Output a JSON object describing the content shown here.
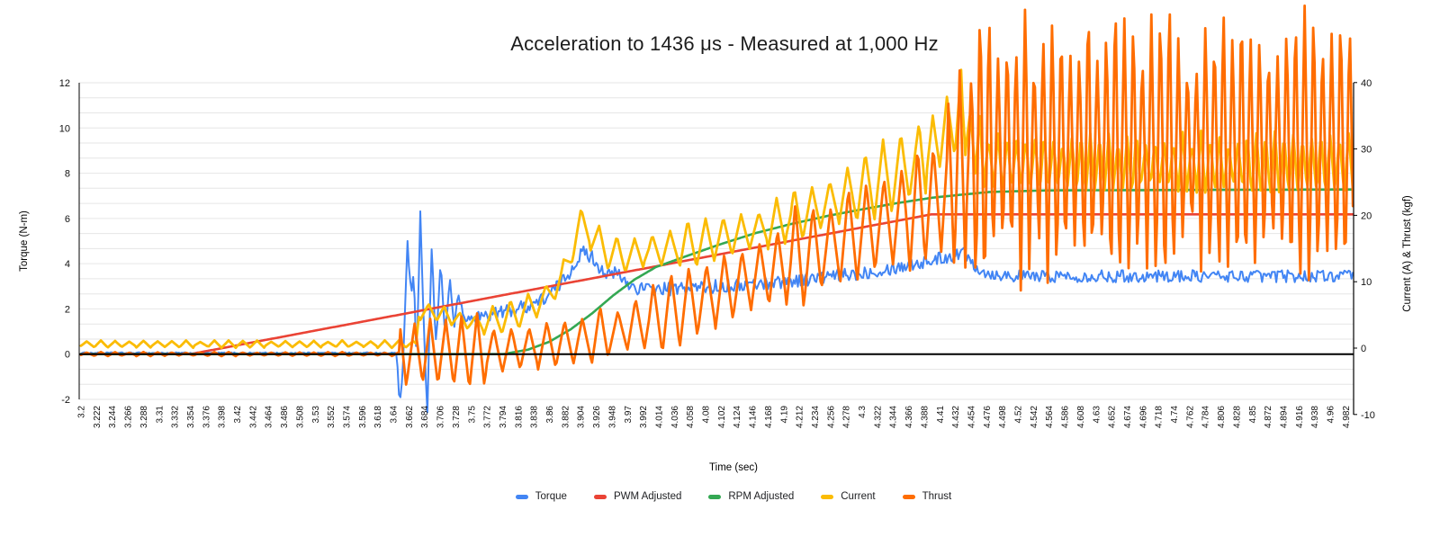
{
  "chart_data": {
    "type": "line",
    "title": "Acceleration to 1436 μs - Measured at 1,000 Hz",
    "x_axis": {
      "label": "Time (sec)",
      "tick_labels": [
        "3.2",
        "3.222",
        "3.244",
        "3.266",
        "3.288",
        "3.31",
        "3.332",
        "3.354",
        "3.376",
        "3.398",
        "3.42",
        "3.442",
        "3.464",
        "3.486",
        "3.508",
        "3.53",
        "3.552",
        "3.574",
        "3.596",
        "3.618",
        "3.64",
        "3.662",
        "3.684",
        "3.706",
        "3.728",
        "3.75",
        "3.772",
        "3.794",
        "3.816",
        "3.838",
        "3.86",
        "3.882",
        "3.904",
        "3.926",
        "3.948",
        "3.97",
        "3.992",
        "4.014",
        "4.036",
        "4.058",
        "4.08",
        "4.102",
        "4.124",
        "4.146",
        "4.168",
        "4.19",
        "4.212",
        "4.234",
        "4.256",
        "4.278",
        "4.3",
        "4.322",
        "4.344",
        "4.366",
        "4.388",
        "4.41",
        "4.432",
        "4.454",
        "4.476",
        "4.498",
        "4.52",
        "4.542",
        "4.564",
        "4.586",
        "4.608",
        "4.63",
        "4.652",
        "4.674",
        "4.696",
        "4.718",
        "4.74",
        "4.762",
        "4.784",
        "4.806",
        "4.828",
        "4.85",
        "4.872",
        "4.894",
        "4.916",
        "4.938",
        "4.96",
        "4.982"
      ],
      "tick_start": 3.2,
      "tick_step": 0.022,
      "x_range": [
        3.2,
        4.993
      ]
    },
    "y_axis_left": {
      "label": "Torque (N-m)",
      "ticks": [
        -2,
        0,
        2,
        4,
        6,
        8,
        10,
        12
      ],
      "range": [
        -2,
        12
      ],
      "minor_grid_step": 0.6667
    },
    "y_axis_right": {
      "label": "Current (A) & Thrust (kgf)",
      "ticks": [
        -10,
        0,
        10,
        20,
        30,
        40
      ],
      "range": [
        -10,
        40
      ]
    },
    "grid": true,
    "legend_position": "bottom",
    "baseline_value": 0,
    "colors": {
      "torque": "#4285F4",
      "pwm_adjusted": "#EA4335",
      "rpm_adjusted": "#34A853",
      "current": "#FBBC04",
      "thrust": "#FF6D01",
      "gridline": "#e6e6e6",
      "axis": "#000000"
    },
    "series": [
      {
        "name": "Torque",
        "color": "#4285F4",
        "axis": "left",
        "stroke_width": 2,
        "keyframes": [
          [
            3.2,
            0.05
          ],
          [
            3.645,
            0.05
          ],
          [
            3.649,
            -2.6
          ],
          [
            3.654,
            -0.2
          ],
          [
            3.66,
            5.0
          ],
          [
            3.665,
            2.6
          ],
          [
            3.669,
            3.4
          ],
          [
            3.673,
            -0.4
          ],
          [
            3.678,
            6.2
          ],
          [
            3.683,
            1.0
          ],
          [
            3.688,
            -2.5
          ],
          [
            3.694,
            4.65
          ],
          [
            3.7,
            0.45
          ],
          [
            3.707,
            4.1
          ],
          [
            3.713,
            0.9
          ],
          [
            3.72,
            3.3
          ],
          [
            3.726,
            1.2
          ],
          [
            3.732,
            2.7
          ],
          [
            3.739,
            1.5
          ],
          [
            3.75,
            1.6
          ],
          [
            3.77,
            1.72
          ],
          [
            3.8,
            1.9
          ],
          [
            3.83,
            2.15
          ],
          [
            3.855,
            2.5
          ],
          [
            3.875,
            3.1
          ],
          [
            3.89,
            3.7
          ],
          [
            3.9,
            4.25
          ],
          [
            3.907,
            4.5
          ],
          [
            3.92,
            4.3
          ],
          [
            3.932,
            3.8
          ],
          [
            3.945,
            3.45
          ],
          [
            3.955,
            3.62
          ],
          [
            3.965,
            3.2
          ],
          [
            3.98,
            2.95
          ],
          [
            4.0,
            2.85
          ],
          [
            4.05,
            2.9
          ],
          [
            4.1,
            3.0
          ],
          [
            4.15,
            3.1
          ],
          [
            4.2,
            3.25
          ],
          [
            4.25,
            3.4
          ],
          [
            4.3,
            3.6
          ],
          [
            4.35,
            3.85
          ],
          [
            4.4,
            4.15
          ],
          [
            4.425,
            4.35
          ],
          [
            4.445,
            4.5
          ],
          [
            4.457,
            4.05
          ],
          [
            4.468,
            3.7
          ],
          [
            4.48,
            3.55
          ],
          [
            4.52,
            3.45
          ],
          [
            4.993,
            3.45
          ]
        ],
        "noise": {
          "type": "random",
          "segments": [
            [
              3.2,
              0.03,
              0
            ],
            [
              3.645,
              0.22,
              0
            ],
            [
              3.742,
              0.3,
              0
            ],
            [
              4.47,
              0.27,
              0
            ]
          ]
        }
      },
      {
        "name": "PWM Adjusted",
        "color": "#EA4335",
        "axis": "left",
        "stroke_width": 2.6,
        "keyframes": [
          [
            3.2,
            0
          ],
          [
            3.354,
            0
          ],
          [
            4.398,
            6.18
          ],
          [
            4.993,
            6.18
          ]
        ],
        "noise": null
      },
      {
        "name": "RPM Adjusted",
        "color": "#34A853",
        "axis": "left",
        "stroke_width": 2.6,
        "keyframes": [
          [
            3.2,
            0
          ],
          [
            3.795,
            0
          ],
          [
            3.83,
            0.2
          ],
          [
            3.86,
            0.55
          ],
          [
            3.89,
            1.1
          ],
          [
            3.92,
            1.8
          ],
          [
            3.95,
            2.6
          ],
          [
            3.98,
            3.3
          ],
          [
            4.01,
            3.85
          ],
          [
            4.05,
            4.3
          ],
          [
            4.1,
            4.85
          ],
          [
            4.15,
            5.35
          ],
          [
            4.2,
            5.75
          ],
          [
            4.25,
            6.1
          ],
          [
            4.3,
            6.4
          ],
          [
            4.35,
            6.68
          ],
          [
            4.4,
            6.92
          ],
          [
            4.44,
            7.05
          ],
          [
            4.48,
            7.17
          ],
          [
            4.56,
            7.24
          ],
          [
            4.993,
            7.28
          ]
        ],
        "noise": null
      },
      {
        "name": "Current",
        "color": "#FBBC04",
        "axis": "right",
        "stroke_width": 2.8,
        "keyframes": [
          [
            3.2,
            0.6
          ],
          [
            3.672,
            0.6
          ],
          [
            3.676,
            5.4
          ],
          [
            3.69,
            5.56
          ],
          [
            3.71,
            5.05
          ],
          [
            3.73,
            4.37
          ],
          [
            3.75,
            3.79
          ],
          [
            3.77,
            4.03
          ],
          [
            3.8,
            4.54
          ],
          [
            3.83,
            5.9
          ],
          [
            3.857,
            7.77
          ],
          [
            3.876,
            10.3
          ],
          [
            3.89,
            14.1
          ],
          [
            3.898,
            17.1
          ],
          [
            3.904,
            19.0
          ],
          [
            3.916,
            17.6
          ],
          [
            3.93,
            15.6
          ],
          [
            3.945,
            14.4
          ],
          [
            3.96,
            13.9
          ],
          [
            3.98,
            14.1
          ],
          [
            4.0,
            14.6
          ],
          [
            4.03,
            15.1
          ],
          [
            4.06,
            15.6
          ],
          [
            4.09,
            16.3
          ],
          [
            4.12,
            17.0
          ],
          [
            4.15,
            17.8
          ],
          [
            4.18,
            18.8
          ],
          [
            4.21,
            19.9
          ],
          [
            4.24,
            21.2
          ],
          [
            4.27,
            22.6
          ],
          [
            4.3,
            23.9
          ],
          [
            4.33,
            25.5
          ],
          [
            4.36,
            27.0
          ],
          [
            4.385,
            29.0
          ],
          [
            4.405,
            31.1
          ],
          [
            4.42,
            33.1
          ],
          [
            4.432,
            34.7
          ],
          [
            4.444,
            34.2
          ],
          [
            4.458,
            31.1
          ],
          [
            4.472,
            28.7
          ],
          [
            4.49,
            27.9
          ],
          [
            4.55,
            27.7
          ],
          [
            4.993,
            27.7
          ]
        ],
        "noise": {
          "type": "sawtooth",
          "segments": [
            [
              3.2,
              0.45,
              0.02
            ],
            [
              3.672,
              1.3,
              0.022
            ],
            [
              3.76,
              2.2,
              0.025
            ],
            [
              4.0,
              3.0,
              0.025
            ],
            [
              4.2,
              4.6,
              0.025
            ],
            [
              4.38,
              6.0,
              0.02
            ],
            [
              4.44,
              4.4,
              0.013
            ],
            [
              4.5,
              4.0,
              0.013
            ]
          ]
        }
      },
      {
        "name": "Thrust",
        "color": "#FF6D01",
        "axis": "right",
        "stroke_width": 2.8,
        "keyframes": [
          [
            3.2,
            -0.9
          ],
          [
            3.648,
            -0.9
          ],
          [
            3.66,
            -0.7
          ],
          [
            3.7,
            -0.6
          ],
          [
            3.76,
            -0.6
          ],
          [
            3.8,
            -0.3
          ],
          [
            3.84,
            0.2
          ],
          [
            3.88,
            0.7
          ],
          [
            3.92,
            1.5
          ],
          [
            3.95,
            2.4
          ],
          [
            3.98,
            3.4
          ],
          [
            4.01,
            4.5
          ],
          [
            4.04,
            5.8
          ],
          [
            4.07,
            7.2
          ],
          [
            4.1,
            8.5
          ],
          [
            4.13,
            9.9
          ],
          [
            4.16,
            11.2
          ],
          [
            4.19,
            12.6
          ],
          [
            4.22,
            13.9
          ],
          [
            4.25,
            15.3
          ],
          [
            4.28,
            16.6
          ],
          [
            4.31,
            18.0
          ],
          [
            4.34,
            19.3
          ],
          [
            4.37,
            20.7
          ],
          [
            4.4,
            22.1
          ],
          [
            4.42,
            24.0
          ],
          [
            4.44,
            26.8
          ],
          [
            4.46,
            28.9
          ],
          [
            4.48,
            30.0
          ],
          [
            4.52,
            30.2
          ],
          [
            4.993,
            30.2
          ]
        ],
        "noise": {
          "type": "sawtooth",
          "segments": [
            [
              3.2,
              0.25,
              0.02
            ],
            [
              3.648,
              4.9,
              0.022
            ],
            [
              3.77,
              3.8,
              0.025
            ],
            [
              4.0,
              5.2,
              0.025
            ],
            [
              4.2,
              7.0,
              0.025
            ],
            [
              4.36,
              8.6,
              0.022
            ],
            [
              4.42,
              12.0,
              0.016
            ],
            [
              4.455,
              19.5,
              0.0127
            ],
            [
              4.75,
              18.0,
              0.0127
            ]
          ]
        }
      }
    ]
  },
  "legend": {
    "items": [
      {
        "label": "Torque",
        "color": "#4285F4"
      },
      {
        "label": "PWM Adjusted",
        "color": "#EA4335"
      },
      {
        "label": "RPM Adjusted",
        "color": "#34A853"
      },
      {
        "label": "Current",
        "color": "#FBBC04"
      },
      {
        "label": "Thrust",
        "color": "#FF6D01"
      }
    ]
  }
}
